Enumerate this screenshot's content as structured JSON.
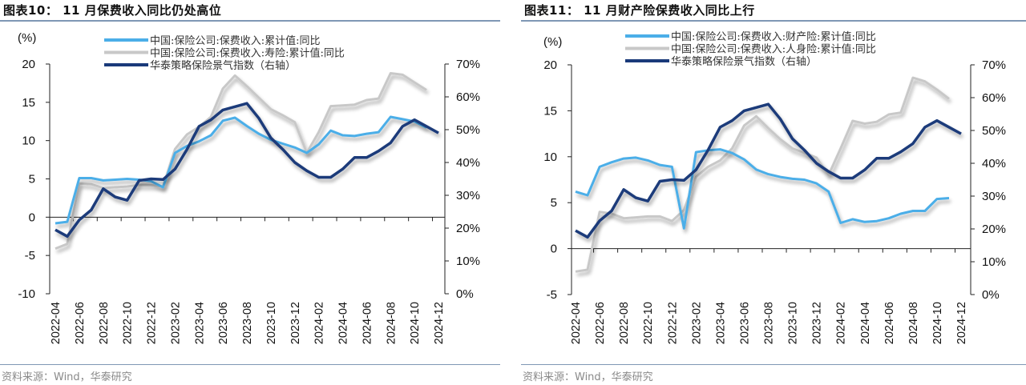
{
  "charts": [
    {
      "id": "chart10",
      "title": "图表10：  11 月保费收入同比仍处高位",
      "source": "资料来源：Wind，华泰研究"
    },
    {
      "id": "chart11",
      "title": "图表11：  11 月财产险保费收入同比上行",
      "source": "资料来源：Wind，华泰研究"
    }
  ],
  "chart_data": [
    {
      "type": "line",
      "title": "图表10：11 月保费收入同比仍处高位",
      "ylabel_left": "(%)",
      "ylim_left": [
        -10,
        20
      ],
      "yticks_left": [
        "-10",
        "-5",
        "0",
        "5",
        "10",
        "15",
        "20"
      ],
      "ylim_right": [
        0,
        70
      ],
      "yticks_right": [
        "0%",
        "10%",
        "20%",
        "30%",
        "40%",
        "50%",
        "60%",
        "70%"
      ],
      "x": [
        "2022-04",
        "2022-05",
        "2022-06",
        "2022-07",
        "2022-08",
        "2022-09",
        "2022-10",
        "2022-11",
        "2022-12",
        "2023-01",
        "2023-02",
        "2023-03",
        "2023-04",
        "2023-05",
        "2023-06",
        "2023-07",
        "2023-08",
        "2023-09",
        "2023-10",
        "2023-11",
        "2023-12",
        "2024-01",
        "2024-02",
        "2024-03",
        "2024-04",
        "2024-05",
        "2024-06",
        "2024-07",
        "2024-08",
        "2024-09",
        "2024-10",
        "2024-11",
        "2024-12"
      ],
      "xtick_labels": [
        "2022-04",
        "2022-06",
        "2022-08",
        "2022-10",
        "2022-12",
        "2023-02",
        "2023-04",
        "2023-06",
        "2023-08",
        "2023-10",
        "2023-12",
        "2024-02",
        "2024-04",
        "2024-06",
        "2024-08",
        "2024-10",
        "2024-12"
      ],
      "legend_position": "top",
      "series": [
        {
          "name": "中国:保险公司:保费收入:累计值:同比",
          "axis": "left",
          "color": "#4baee8",
          "values": [
            -0.8,
            -0.6,
            5.1,
            5.1,
            4.8,
            4.9,
            5.0,
            4.9,
            4.7,
            3.9,
            8.4,
            9.3,
            9.9,
            10.7,
            12.6,
            13.0,
            11.9,
            10.9,
            10.1,
            9.6,
            9.1,
            8.4,
            9.5,
            11.3,
            10.7,
            10.6,
            10.9,
            11.1,
            13.1,
            12.8,
            12.5,
            11.7,
            null
          ]
        },
        {
          "name": "中国:保险公司:保费收入:寿险:累计值:同比",
          "axis": "left",
          "color": "#c8c8c8",
          "values": [
            -4.1,
            -3.5,
            4.4,
            4.3,
            3.8,
            3.9,
            4.0,
            4.2,
            4.2,
            4.0,
            8.9,
            10.8,
            11.8,
            13.1,
            16.8,
            18.5,
            17.1,
            15.6,
            14.1,
            13.3,
            12.4,
            8.4,
            11.1,
            14.5,
            14.6,
            14.7,
            15.3,
            15.5,
            18.8,
            18.6,
            17.6,
            16.6,
            null
          ]
        },
        {
          "name": "华泰策略保险景气指数（右轴）",
          "axis": "right",
          "color": "#1a3a7a",
          "values": [
            19.5,
            17.5,
            22.5,
            25.5,
            32.0,
            29.5,
            28.5,
            34.5,
            35.0,
            34.8,
            38.0,
            44.0,
            51.0,
            53.0,
            56.0,
            57.0,
            58.0,
            53.5,
            47.5,
            44.0,
            40.0,
            37.5,
            35.5,
            35.5,
            38.0,
            41.5,
            41.5,
            43.5,
            46.0,
            51.0,
            53.0,
            51.0,
            49.0
          ]
        }
      ]
    },
    {
      "type": "line",
      "title": "图表11：11 月财产险保费收入同比上行",
      "ylabel_left": "(%)",
      "ylim_left": [
        -5,
        20
      ],
      "yticks_left": [
        "-5",
        "0",
        "5",
        "10",
        "15",
        "20"
      ],
      "ylim_right": [
        0,
        70
      ],
      "yticks_right": [
        "0%",
        "10%",
        "20%",
        "30%",
        "40%",
        "50%",
        "60%",
        "70%"
      ],
      "x": [
        "2022-04",
        "2022-05",
        "2022-06",
        "2022-07",
        "2022-08",
        "2022-09",
        "2022-10",
        "2022-11",
        "2022-12",
        "2023-01",
        "2023-02",
        "2023-03",
        "2023-04",
        "2023-05",
        "2023-06",
        "2023-07",
        "2023-08",
        "2023-09",
        "2023-10",
        "2023-11",
        "2023-12",
        "2024-01",
        "2024-02",
        "2024-03",
        "2024-04",
        "2024-05",
        "2024-06",
        "2024-07",
        "2024-08",
        "2024-09",
        "2024-10",
        "2024-11",
        "2024-12"
      ],
      "xtick_labels": [
        "2022-04",
        "2022-06",
        "2022-08",
        "2022-10",
        "2022-12",
        "2023-02",
        "2023-04",
        "2023-06",
        "2023-08",
        "2023-10",
        "2023-12",
        "2024-02",
        "2024-04",
        "2024-06",
        "2024-08",
        "2024-10",
        "2024-12"
      ],
      "legend_position": "top",
      "series": [
        {
          "name": "中国:保险公司:保费收入:财产险:累计值:同比",
          "axis": "left",
          "color": "#4baee8",
          "values": [
            6.2,
            5.8,
            8.9,
            9.4,
            9.8,
            9.9,
            9.6,
            9.1,
            8.9,
            2.2,
            10.5,
            10.7,
            10.8,
            10.4,
            9.7,
            8.6,
            8.1,
            7.8,
            7.6,
            7.5,
            7.1,
            6.2,
            2.8,
            3.2,
            2.9,
            3.0,
            3.3,
            3.8,
            4.1,
            4.1,
            5.4,
            5.5,
            null
          ]
        },
        {
          "name": "中国:保险公司:保费收入:人身险:累计值:同比",
          "axis": "left",
          "color": "#c8c8c8",
          "values": [
            -2.5,
            -2.3,
            4.0,
            3.8,
            3.3,
            3.4,
            3.5,
            3.5,
            3.0,
            4.2,
            7.8,
            8.9,
            9.6,
            10.9,
            13.4,
            14.4,
            13.1,
            11.9,
            10.9,
            10.4,
            9.9,
            8.0,
            10.9,
            13.9,
            13.6,
            13.8,
            14.6,
            14.8,
            18.6,
            18.2,
            17.3,
            16.3,
            null
          ]
        },
        {
          "name": "华泰策略保险景气指数（右轴）",
          "axis": "right",
          "color": "#1a3a7a",
          "values": [
            19.5,
            17.5,
            22.5,
            25.5,
            32.0,
            29.5,
            28.5,
            34.5,
            35.0,
            34.8,
            38.0,
            44.0,
            51.0,
            53.0,
            56.0,
            57.0,
            58.0,
            53.5,
            47.5,
            44.0,
            40.0,
            37.5,
            35.5,
            35.5,
            38.0,
            41.5,
            41.5,
            43.5,
            46.0,
            51.0,
            53.0,
            51.0,
            49.0
          ]
        }
      ]
    }
  ]
}
